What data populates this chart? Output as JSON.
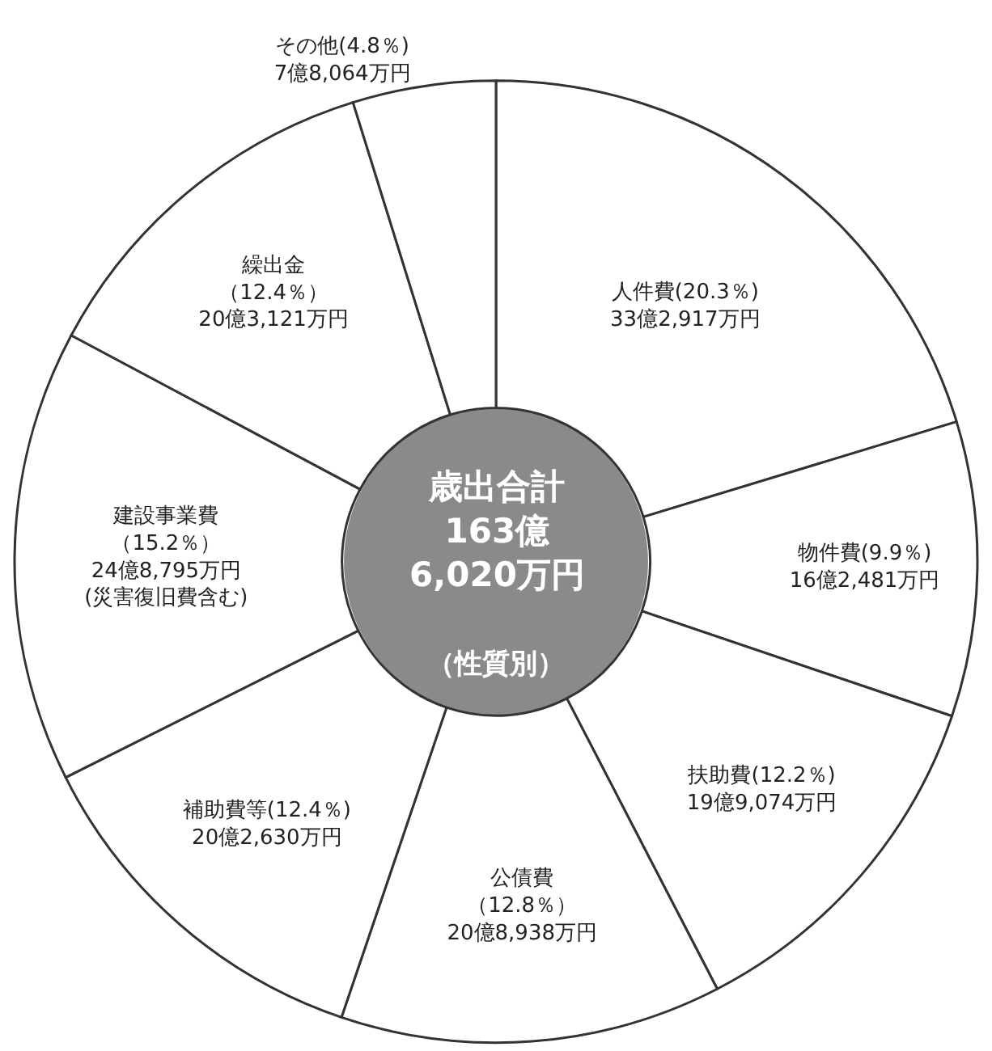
{
  "chart_data": {
    "type": "donut",
    "title": "歳出合計\n163億\n6,020万円",
    "subtitle": "（性質別）",
    "categories": [
      "人件費",
      "物件費",
      "扶助費",
      "公債費",
      "補助費等",
      "建設事業費",
      "繰出金",
      "その他"
    ],
    "values": [
      20.3,
      9.9,
      12.2,
      12.8,
      12.4,
      15.2,
      12.4,
      4.8
    ],
    "value_labels": [
      "(20.3％)\n33億2,917万円",
      "(9.9％)\n16億2,481万円",
      "(12.2％)\n19億9,074万円",
      "（12.8％）\n20億8,938万円",
      "(12.4％)\n20億2,630万円",
      "（15.2％）\n24億8,795万円\n(災害復旧費含む)",
      "（12.4％）\n20億3,121万円",
      "(4.8％)\n7億8,064万円"
    ],
    "colors": [
      "#ffffff",
      "#ffffff",
      "#ffffff",
      "#ffffff",
      "#ffffff",
      "#ffffff",
      "#ffffff",
      "#ffffff"
    ],
    "legend": false
  }
}
